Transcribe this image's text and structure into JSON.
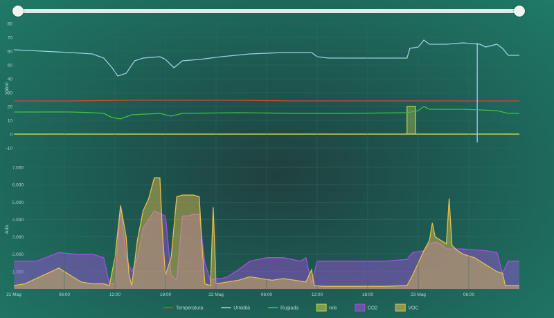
{
  "range_slider": {
    "start": 0,
    "end": 1
  },
  "colors": {
    "temperatura": "#d9452c",
    "umidita": "#9fd0e6",
    "rugiada": "#43c043",
    "rele": "#c8d24a",
    "co2": "#a44fe0",
    "voc": "#e6c04b",
    "axis_text": "#b7d8cf",
    "grid": "#2f6a61"
  },
  "legend": [
    {
      "key": "temperatura",
      "label": "Temperatura",
      "kind": "line"
    },
    {
      "key": "umidita",
      "label": "Umidità",
      "kind": "line"
    },
    {
      "key": "rugiada",
      "label": "Rugiada",
      "kind": "line"
    },
    {
      "key": "rele",
      "label": "rele",
      "kind": "box"
    },
    {
      "key": "co2",
      "label": "CO2",
      "kind": "box"
    },
    {
      "key": "voc",
      "label": "VOC",
      "kind": "box"
    }
  ],
  "chart_data": [
    {
      "type": "line",
      "title": "",
      "xlabel": "",
      "ylabel": "Valori",
      "ylim": [
        -10,
        80
      ],
      "yticks": [
        -10,
        0,
        10,
        20,
        30,
        40,
        50,
        60,
        70,
        80
      ],
      "grid": true,
      "x_hours": [
        0,
        90
      ],
      "series": [
        {
          "name": "Temperatura",
          "color_key": "temperatura",
          "points": [
            [
              0,
              24
            ],
            [
              10,
              24
            ],
            [
              20,
              24.5
            ],
            [
              30,
              24.5
            ],
            [
              40,
              24.5
            ],
            [
              50,
              24
            ],
            [
              60,
              24
            ],
            [
              70,
              24
            ],
            [
              80,
              24
            ],
            [
              90,
              24
            ]
          ]
        },
        {
          "name": "Umidità",
          "color_key": "umidita",
          "points": [
            [
              0,
              61
            ],
            [
              5,
              60
            ],
            [
              10,
              59
            ],
            [
              14,
              58
            ],
            [
              16,
              55
            ],
            [
              17.5,
              48
            ],
            [
              18.5,
              42
            ],
            [
              20,
              44
            ],
            [
              21.5,
              53
            ],
            [
              23,
              55
            ],
            [
              26,
              56
            ],
            [
              27,
              54
            ],
            [
              28.5,
              48
            ],
            [
              30,
              53
            ],
            [
              33,
              54
            ],
            [
              37,
              56
            ],
            [
              42,
              58
            ],
            [
              48,
              59
            ],
            [
              53,
              59
            ],
            [
              54,
              56
            ],
            [
              56,
              55
            ],
            [
              62,
              55
            ],
            [
              68,
              55
            ],
            [
              70,
              55
            ],
            [
              70.5,
              62
            ],
            [
              72,
              63
            ],
            [
              73,
              68
            ],
            [
              74,
              65
            ],
            [
              77,
              65
            ],
            [
              80,
              66
            ],
            [
              83,
              65
            ],
            [
              84,
              63
            ],
            [
              86,
              65
            ],
            [
              87,
              62
            ],
            [
              88,
              57
            ],
            [
              90,
              57
            ]
          ],
          "spike": {
            "x": 82.5,
            "top": 66,
            "bottom": -6
          }
        },
        {
          "name": "Rugiada",
          "color_key": "rugiada",
          "points": [
            [
              0,
              16
            ],
            [
              10,
              16
            ],
            [
              14,
              15.5
            ],
            [
              16,
              15
            ],
            [
              17.5,
              12
            ],
            [
              19,
              11
            ],
            [
              21,
              14
            ],
            [
              26,
              15
            ],
            [
              28,
              13
            ],
            [
              30,
              15
            ],
            [
              40,
              15.5
            ],
            [
              50,
              15
            ],
            [
              60,
              15
            ],
            [
              70,
              15.5
            ],
            [
              72,
              17
            ],
            [
              73,
              20
            ],
            [
              74,
              18
            ],
            [
              80,
              18
            ],
            [
              86,
              17
            ],
            [
              87,
              16
            ],
            [
              88,
              15
            ],
            [
              90,
              15
            ]
          ]
        }
      ],
      "rele_pulse": {
        "x_start": 70,
        "x_end": 71.5,
        "value": 20
      }
    },
    {
      "type": "area",
      "title": "",
      "xlabel": "",
      "ylabel": "Aria",
      "ylim": [
        0,
        7000
      ],
      "yticks": [
        0,
        1000,
        2000,
        3000,
        4000,
        5000,
        6000,
        7000
      ],
      "ytick_labels": [
        "",
        "1.000",
        "2.000",
        "3.000",
        "4.000",
        "5.000",
        "6.000",
        "7.000"
      ],
      "grid": true,
      "x_ticks": [
        {
          "h": 0,
          "label": "21 Mag"
        },
        {
          "h": 9,
          "label": "06:00"
        },
        {
          "h": 18,
          "label": "12:00"
        },
        {
          "h": 27,
          "label": "18:00"
        },
        {
          "h": 36,
          "label": "22 Mag"
        },
        {
          "h": 45,
          "label": "06:00"
        },
        {
          "h": 54,
          "label": "12:00"
        },
        {
          "h": 63,
          "label": "18:00"
        },
        {
          "h": 72,
          "label": "23 Mag"
        },
        {
          "h": 81,
          "label": "06:00"
        }
      ],
      "x_hours": [
        0,
        90
      ],
      "series": [
        {
          "name": "CO2",
          "color_key": "co2",
          "points": [
            [
              0,
              1600
            ],
            [
              4,
              1600
            ],
            [
              8,
              2100
            ],
            [
              11,
              2000
            ],
            [
              14,
              2000
            ],
            [
              16,
              1800
            ],
            [
              17,
              300
            ],
            [
              18,
              300
            ],
            [
              19,
              4800
            ],
            [
              20,
              1800
            ],
            [
              21,
              1000
            ],
            [
              22,
              1800
            ],
            [
              23,
              3500
            ],
            [
              24,
              4000
            ],
            [
              25,
              4500
            ],
            [
              27,
              4200
            ],
            [
              28,
              800
            ],
            [
              29,
              500
            ],
            [
              30,
              4200
            ],
            [
              31,
              4200
            ],
            [
              32,
              4300
            ],
            [
              33,
              4300
            ],
            [
              34,
              1500
            ],
            [
              35,
              500
            ],
            [
              36,
              600
            ],
            [
              37,
              600
            ],
            [
              38,
              700
            ],
            [
              40,
              1100
            ],
            [
              42,
              1600
            ],
            [
              45,
              1800
            ],
            [
              48,
              1800
            ],
            [
              51,
              1600
            ],
            [
              52,
              1800
            ],
            [
              53,
              300
            ],
            [
              54,
              1600
            ],
            [
              60,
              1600
            ],
            [
              66,
              1600
            ],
            [
              70,
              1700
            ],
            [
              71,
              2100
            ],
            [
              73,
              2200
            ],
            [
              74,
              2600
            ],
            [
              75,
              2700
            ],
            [
              76,
              2600
            ],
            [
              77,
              2300
            ],
            [
              80,
              2300
            ],
            [
              84,
              2200
            ],
            [
              86,
              2100
            ],
            [
              87,
              900
            ],
            [
              88,
              1600
            ],
            [
              90,
              1600
            ]
          ]
        },
        {
          "name": "VOC",
          "color_key": "voc",
          "points": [
            [
              0,
              200
            ],
            [
              2,
              300
            ],
            [
              4,
              600
            ],
            [
              6,
              900
            ],
            [
              8,
              1200
            ],
            [
              10,
              800
            ],
            [
              12,
              400
            ],
            [
              14,
              300
            ],
            [
              16,
              300
            ],
            [
              17,
              200
            ],
            [
              18,
              1800
            ],
            [
              19,
              4800
            ],
            [
              20,
              3000
            ],
            [
              20.5,
              800
            ],
            [
              21,
              200
            ],
            [
              22,
              2800
            ],
            [
              23,
              4500
            ],
            [
              24,
              5200
            ],
            [
              25,
              6400
            ],
            [
              26,
              6400
            ],
            [
              26.5,
              3000
            ],
            [
              27,
              800
            ],
            [
              28,
              1800
            ],
            [
              29,
              5300
            ],
            [
              30,
              5400
            ],
            [
              31,
              5400
            ],
            [
              32,
              5400
            ],
            [
              33,
              5300
            ],
            [
              33.5,
              2500
            ],
            [
              34,
              300
            ],
            [
              35,
              200
            ],
            [
              35.5,
              4700
            ],
            [
              36,
              300
            ],
            [
              38,
              400
            ],
            [
              40,
              500
            ],
            [
              42,
              700
            ],
            [
              44,
              600
            ],
            [
              46,
              500
            ],
            [
              48,
              600
            ],
            [
              50,
              500
            ],
            [
              52,
              400
            ],
            [
              53,
              1100
            ],
            [
              53.5,
              200
            ],
            [
              55,
              150
            ],
            [
              60,
              150
            ],
            [
              66,
              150
            ],
            [
              70,
              200
            ],
            [
              71,
              800
            ],
            [
              72,
              1500
            ],
            [
              73,
              2200
            ],
            [
              74,
              2800
            ],
            [
              74.5,
              3800
            ],
            [
              75,
              3000
            ],
            [
              76,
              2800
            ],
            [
              77,
              2600
            ],
            [
              77.5,
              5200
            ],
            [
              78,
              2500
            ],
            [
              79,
              2200
            ],
            [
              80,
              2000
            ],
            [
              82,
              1800
            ],
            [
              84,
              1400
            ],
            [
              86,
              1000
            ],
            [
              87,
              900
            ],
            [
              87.5,
              200
            ],
            [
              88,
              200
            ],
            [
              90,
              200
            ]
          ]
        }
      ]
    }
  ]
}
